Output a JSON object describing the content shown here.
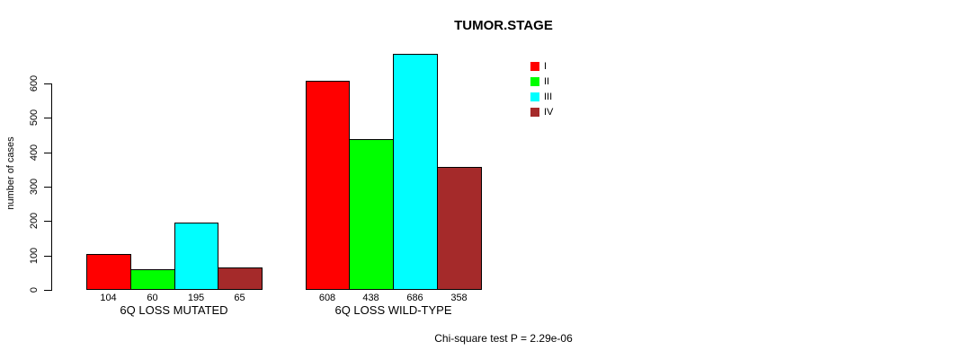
{
  "chart_data": {
    "type": "bar",
    "title": "TUMOR.STAGE",
    "ylabel": "number of cases",
    "xlabel": "",
    "categories": [
      "6Q LOSS MUTATED",
      "6Q LOSS WILD-TYPE"
    ],
    "series": [
      {
        "name": "I",
        "color": "#FF0000",
        "values": [
          104,
          608
        ]
      },
      {
        "name": "II",
        "color": "#00FF00",
        "values": [
          60,
          438
        ]
      },
      {
        "name": "III",
        "color": "#00FFFF",
        "values": [
          195,
          686
        ]
      },
      {
        "name": "IV",
        "color": "#A52A2A",
        "values": [
          65,
          358
        ]
      }
    ],
    "yticks": [
      0,
      100,
      200,
      300,
      400,
      500,
      600
    ],
    "ylim": [
      0,
      690
    ],
    "grid": false,
    "show_value_labels": true,
    "legend_position": "top-right",
    "annotation": "Chi-square test P = 2.29e-06",
    "axis_color": "#000000",
    "bar_border_color": "#000000",
    "background_color": "#FFFFFF"
  }
}
